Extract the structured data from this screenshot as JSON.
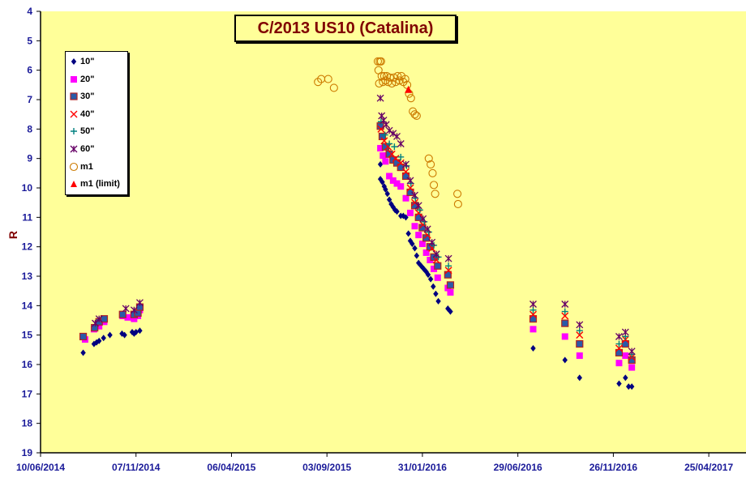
{
  "chart_data": {
    "type": "scatter",
    "title": "C/2013 US10 (Catalina)",
    "xlabel": "",
    "ylabel": "R",
    "ylim": [
      4,
      19
    ],
    "y_inverted": true,
    "x_range": [
      "10/06/2014",
      "25/06/2017"
    ],
    "x_tick_labels": [
      "10/06/2014",
      "07/11/2014",
      "06/04/2015",
      "03/09/2015",
      "31/01/2016",
      "29/06/2016",
      "26/11/2016",
      "25/04/2017"
    ],
    "y_tick_labels": [
      "4",
      "5",
      "6",
      "7",
      "8",
      "9",
      "10",
      "11",
      "12",
      "13",
      "14",
      "15",
      "16",
      "17",
      "18",
      "19"
    ],
    "grid": false,
    "legend_position": "top-left",
    "colors": {
      "plot_bg": "#ffff99",
      "axis": "#000000",
      "ticks": "#1a1a99"
    },
    "series": [
      {
        "name": "10\"",
        "marker": "diamond",
        "color": "#000080",
        "points": [
          [
            "2014-08-16",
            15.6
          ],
          [
            "2014-09-02",
            15.3
          ],
          [
            "2014-09-06",
            15.25
          ],
          [
            "2014-09-10",
            15.2
          ],
          [
            "2014-09-17",
            15.1
          ],
          [
            "2014-09-27",
            15.0
          ],
          [
            "2014-10-16",
            14.95
          ],
          [
            "2014-10-20",
            15.0
          ],
          [
            "2014-11-01",
            14.9
          ],
          [
            "2014-11-04",
            14.95
          ],
          [
            "2014-11-07",
            14.9
          ],
          [
            "2014-11-13",
            14.85
          ],
          [
            "2015-11-26",
            9.2
          ],
          [
            "2015-11-26",
            9.7
          ],
          [
            "2015-11-29",
            9.8
          ],
          [
            "2015-12-02",
            9.95
          ],
          [
            "2015-12-04",
            10.05
          ],
          [
            "2015-12-07",
            10.2
          ],
          [
            "2015-12-10",
            10.4
          ],
          [
            "2015-12-13",
            10.55
          ],
          [
            "2015-12-16",
            10.65
          ],
          [
            "2015-12-19",
            10.75
          ],
          [
            "2015-12-22",
            10.8
          ],
          [
            "2015-12-28",
            10.95
          ],
          [
            "2016-01-01",
            10.95
          ],
          [
            "2016-01-05",
            11.0
          ],
          [
            "2016-01-09",
            11.55
          ],
          [
            "2016-01-12",
            11.8
          ],
          [
            "2016-01-15",
            11.9
          ],
          [
            "2016-01-19",
            12.05
          ],
          [
            "2016-01-22",
            12.3
          ],
          [
            "2016-01-25",
            12.55
          ],
          [
            "2016-01-29",
            12.65
          ],
          [
            "2016-02-02",
            12.75
          ],
          [
            "2016-02-06",
            12.85
          ],
          [
            "2016-02-09",
            12.95
          ],
          [
            "2016-02-13",
            13.1
          ],
          [
            "2016-02-17",
            13.35
          ],
          [
            "2016-02-21",
            13.6
          ],
          [
            "2016-02-25",
            13.85
          ],
          [
            "2016-03-11",
            14.1
          ],
          [
            "2016-03-15",
            14.2
          ],
          [
            "2016-07-23",
            15.45
          ],
          [
            "2016-09-11",
            15.85
          ],
          [
            "2016-10-04",
            16.45
          ],
          [
            "2016-12-05",
            16.65
          ],
          [
            "2016-12-15",
            16.45
          ],
          [
            "2016-12-20",
            16.75
          ],
          [
            "2016-12-25",
            16.75
          ]
        ]
      },
      {
        "name": "20\"",
        "marker": "square",
        "color": "#ff00ff",
        "points": [
          [
            "2014-08-19",
            15.15
          ],
          [
            "2014-09-02",
            14.8
          ],
          [
            "2014-09-10",
            14.7
          ],
          [
            "2014-09-18",
            14.55
          ],
          [
            "2014-10-17",
            14.35
          ],
          [
            "2014-10-25",
            14.4
          ],
          [
            "2014-11-04",
            14.45
          ],
          [
            "2014-11-10",
            14.35
          ],
          [
            "2014-11-13",
            14.15
          ],
          [
            "2015-11-26",
            8.65
          ],
          [
            "2015-11-30",
            8.9
          ],
          [
            "2015-12-04",
            9.1
          ],
          [
            "2015-12-10",
            9.6
          ],
          [
            "2015-12-16",
            9.75
          ],
          [
            "2015-12-22",
            9.85
          ],
          [
            "2015-12-28",
            9.95
          ],
          [
            "2016-01-05",
            10.35
          ],
          [
            "2016-01-12",
            10.85
          ],
          [
            "2016-01-19",
            11.3
          ],
          [
            "2016-01-25",
            11.6
          ],
          [
            "2016-01-31",
            11.9
          ],
          [
            "2016-02-06",
            12.2
          ],
          [
            "2016-02-12",
            12.45
          ],
          [
            "2016-02-18",
            12.75
          ],
          [
            "2016-02-24",
            13.05
          ],
          [
            "2016-03-11",
            13.4
          ],
          [
            "2016-03-15",
            13.55
          ],
          [
            "2016-07-23",
            14.8
          ],
          [
            "2016-09-11",
            15.05
          ],
          [
            "2016-10-04",
            15.7
          ],
          [
            "2016-12-05",
            15.95
          ],
          [
            "2016-12-15",
            15.7
          ],
          [
            "2016-12-25",
            16.1
          ]
        ]
      },
      {
        "name": "30\"",
        "marker": "square-outline",
        "color": "#2a5aa8",
        "points": [
          [
            "2014-08-16",
            15.05
          ],
          [
            "2014-09-03",
            14.75
          ],
          [
            "2014-09-10",
            14.55
          ],
          [
            "2014-09-18",
            14.45
          ],
          [
            "2014-10-17",
            14.3
          ],
          [
            "2014-11-04",
            14.3
          ],
          [
            "2014-11-10",
            14.25
          ],
          [
            "2014-11-13",
            14.05
          ],
          [
            "2015-11-26",
            7.9
          ],
          [
            "2015-11-29",
            8.25
          ],
          [
            "2015-12-04",
            8.6
          ],
          [
            "2015-12-10",
            8.85
          ],
          [
            "2015-12-16",
            9.05
          ],
          [
            "2015-12-22",
            9.15
          ],
          [
            "2015-12-28",
            9.3
          ],
          [
            "2016-01-05",
            9.6
          ],
          [
            "2016-01-12",
            10.15
          ],
          [
            "2016-01-19",
            10.6
          ],
          [
            "2016-01-25",
            11.0
          ],
          [
            "2016-01-31",
            11.35
          ],
          [
            "2016-02-06",
            11.7
          ],
          [
            "2016-02-12",
            12.0
          ],
          [
            "2016-02-18",
            12.35
          ],
          [
            "2016-02-24",
            12.65
          ],
          [
            "2016-03-11",
            12.95
          ],
          [
            "2016-03-15",
            13.3
          ],
          [
            "2016-07-23",
            14.45
          ],
          [
            "2016-09-11",
            14.6
          ],
          [
            "2016-10-04",
            15.3
          ],
          [
            "2016-12-05",
            15.6
          ],
          [
            "2016-12-15",
            15.3
          ],
          [
            "2016-12-25",
            15.85
          ]
        ]
      },
      {
        "name": "40\"",
        "marker": "x",
        "color": "#ff0000",
        "points": [
          [
            "2015-11-27",
            8.0
          ],
          [
            "2015-12-02",
            8.4
          ],
          [
            "2015-12-08",
            8.6
          ],
          [
            "2015-12-14",
            8.85
          ],
          [
            "2015-12-20",
            9.0
          ],
          [
            "2015-12-28",
            9.15
          ],
          [
            "2016-01-05",
            9.45
          ],
          [
            "2016-01-12",
            10.0
          ],
          [
            "2016-01-19",
            10.5
          ],
          [
            "2016-01-25",
            10.85
          ],
          [
            "2016-02-01",
            11.25
          ],
          [
            "2016-02-08",
            11.6
          ],
          [
            "2016-02-15",
            12.05
          ],
          [
            "2016-02-22",
            12.45
          ],
          [
            "2016-03-12",
            12.8
          ],
          [
            "2016-07-23",
            14.3
          ],
          [
            "2016-09-11",
            14.35
          ],
          [
            "2016-10-04",
            15.0
          ],
          [
            "2016-12-05",
            15.45
          ],
          [
            "2016-12-15",
            15.15
          ],
          [
            "2016-12-25",
            15.75
          ]
        ]
      },
      {
        "name": "50\"",
        "marker": "plus",
        "color": "#008080",
        "points": [
          [
            "2015-11-27",
            7.75
          ],
          [
            "2015-12-03",
            8.2
          ],
          [
            "2015-12-10",
            8.5
          ],
          [
            "2015-12-18",
            8.6
          ],
          [
            "2015-12-28",
            8.95
          ],
          [
            "2016-01-06",
            9.25
          ],
          [
            "2016-01-13",
            9.85
          ],
          [
            "2016-01-20",
            10.35
          ],
          [
            "2016-01-27",
            10.75
          ],
          [
            "2016-02-03",
            11.15
          ],
          [
            "2016-02-10",
            11.5
          ],
          [
            "2016-02-18",
            11.95
          ],
          [
            "2016-02-25",
            12.35
          ],
          [
            "2016-03-12",
            12.65
          ],
          [
            "2016-07-23",
            14.15
          ],
          [
            "2016-09-11",
            14.2
          ],
          [
            "2016-10-04",
            14.85
          ],
          [
            "2016-12-05",
            15.3
          ],
          [
            "2016-12-15",
            15.05
          ],
          [
            "2016-12-25",
            15.65
          ]
        ]
      },
      {
        "name": "60\"",
        "marker": "star",
        "color": "#660066",
        "points": [
          [
            "2014-09-04",
            14.6
          ],
          [
            "2014-09-10",
            14.45
          ],
          [
            "2014-10-22",
            14.1
          ],
          [
            "2014-11-04",
            14.15
          ],
          [
            "2014-11-13",
            13.9
          ],
          [
            "2015-11-26",
            6.95
          ],
          [
            "2015-11-28",
            7.55
          ],
          [
            "2015-12-01",
            7.7
          ],
          [
            "2015-12-05",
            7.85
          ],
          [
            "2015-12-10",
            8.05
          ],
          [
            "2015-12-16",
            8.15
          ],
          [
            "2015-12-22",
            8.25
          ],
          [
            "2015-12-28",
            8.5
          ],
          [
            "2016-01-05",
            9.2
          ],
          [
            "2016-01-12",
            9.75
          ],
          [
            "2016-01-19",
            10.25
          ],
          [
            "2016-01-25",
            10.6
          ],
          [
            "2016-02-01",
            11.05
          ],
          [
            "2016-02-08",
            11.4
          ],
          [
            "2016-02-15",
            11.85
          ],
          [
            "2016-02-22",
            12.25
          ],
          [
            "2016-03-12",
            12.4
          ],
          [
            "2016-07-23",
            13.95
          ],
          [
            "2016-09-11",
            13.95
          ],
          [
            "2016-10-04",
            14.65
          ],
          [
            "2016-12-05",
            15.05
          ],
          [
            "2016-12-15",
            14.9
          ],
          [
            "2016-12-25",
            15.55
          ]
        ]
      },
      {
        "name": "m1",
        "marker": "circle-outline",
        "color": "#cc7a00",
        "points": [
          [
            "2015-08-20",
            6.4
          ],
          [
            "2015-08-25",
            6.3
          ],
          [
            "2015-09-05",
            6.3
          ],
          [
            "2015-09-14",
            6.6
          ],
          [
            "2015-11-22",
            5.7
          ],
          [
            "2015-11-23",
            6.0
          ],
          [
            "2015-11-24",
            6.45
          ],
          [
            "2015-11-25",
            5.7
          ],
          [
            "2015-11-27",
            5.7
          ],
          [
            "2015-11-28",
            6.2
          ],
          [
            "2015-11-30",
            6.4
          ],
          [
            "2015-12-02",
            6.2
          ],
          [
            "2015-12-04",
            6.35
          ],
          [
            "2015-12-06",
            6.2
          ],
          [
            "2015-12-08",
            6.4
          ],
          [
            "2015-12-11",
            6.25
          ],
          [
            "2015-12-14",
            6.45
          ],
          [
            "2015-12-17",
            6.25
          ],
          [
            "2015-12-20",
            6.4
          ],
          [
            "2015-12-23",
            6.2
          ],
          [
            "2015-12-26",
            6.35
          ],
          [
            "2015-12-29",
            6.2
          ],
          [
            "2016-01-01",
            6.4
          ],
          [
            "2016-01-04",
            6.3
          ],
          [
            "2016-01-07",
            6.5
          ],
          [
            "2016-01-10",
            6.8
          ],
          [
            "2016-01-13",
            6.95
          ],
          [
            "2016-01-16",
            7.4
          ],
          [
            "2016-01-19",
            7.5
          ],
          [
            "2016-01-22",
            7.55
          ],
          [
            "2016-02-10",
            9.0
          ],
          [
            "2016-02-13",
            9.2
          ],
          [
            "2016-02-16",
            9.5
          ],
          [
            "2016-02-18",
            9.9
          ],
          [
            "2016-02-20",
            10.2
          ],
          [
            "2016-03-26",
            10.2
          ],
          [
            "2016-03-27",
            10.55
          ]
        ]
      },
      {
        "name": "m1 (limit)",
        "marker": "triangle",
        "color": "#ff0000",
        "points": [
          [
            "2016-01-09",
            6.65
          ]
        ]
      }
    ]
  }
}
